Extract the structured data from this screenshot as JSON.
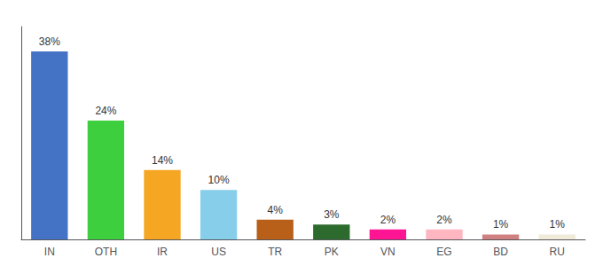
{
  "chart_data": {
    "type": "bar",
    "categories": [
      "IN",
      "OTH",
      "IR",
      "US",
      "TR",
      "PK",
      "VN",
      "EG",
      "BD",
      "RU"
    ],
    "values": [
      38,
      24,
      14,
      10,
      4,
      3,
      2,
      2,
      1,
      1
    ],
    "value_labels": [
      "38%",
      "24%",
      "14%",
      "10%",
      "4%",
      "3%",
      "2%",
      "2%",
      "1%",
      "1%"
    ],
    "colors": [
      "#4472c4",
      "#3ecf3e",
      "#f5a623",
      "#87ceeb",
      "#b8601a",
      "#2d6a2d",
      "#ff1493",
      "#ffb6c1",
      "#d08080",
      "#f0ead8"
    ],
    "ylim": [
      0,
      43
    ],
    "data_labels": true,
    "tick_labels": "x",
    "grid": false
  }
}
